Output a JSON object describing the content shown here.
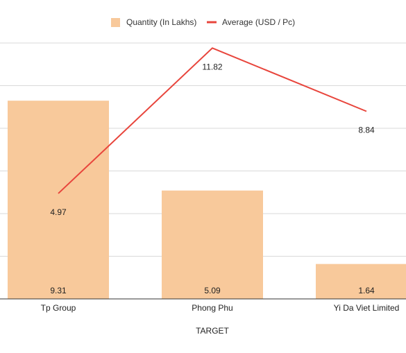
{
  "chart_data": {
    "type": "bar",
    "xlabel": "TARGET",
    "categories": [
      "Tp Group",
      "Phong Phu",
      "Yi Da Viet Limited"
    ],
    "series": [
      {
        "name": "Quantity (In Lakhs)",
        "type": "bar",
        "color": "#f8c99b",
        "values": [
          9.31,
          5.09,
          1.64
        ],
        "labels": [
          "9.31",
          "5.09",
          "1.64"
        ]
      },
      {
        "name": "Average (USD / Pc)",
        "type": "line",
        "color": "#e8453c",
        "values": [
          4.97,
          11.82,
          8.84
        ],
        "labels": [
          "4.97",
          "11.82",
          "8.84"
        ]
      }
    ],
    "grid": true,
    "legend_position": "top"
  }
}
